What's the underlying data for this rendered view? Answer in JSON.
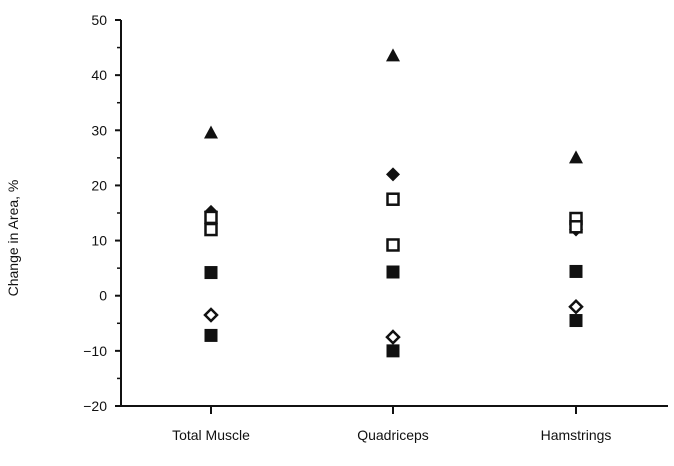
{
  "chart_data": {
    "type": "scatter",
    "ylabel": "Change in Area, %",
    "xlabel": "",
    "ylim": [
      -20,
      50
    ],
    "yticks": [
      -20,
      -10,
      0,
      10,
      20,
      30,
      40,
      50
    ],
    "ytick_labels": [
      "−20",
      "−10",
      "0",
      "10",
      "20",
      "30",
      "40",
      "50"
    ],
    "categories": [
      "Total Muscle",
      "Quadriceps",
      "Hamstrings"
    ],
    "grid": false,
    "series": [
      {
        "marker": "filled-triangle",
        "values": [
          29.5,
          43.5,
          25.0
        ]
      },
      {
        "marker": "filled-diamond",
        "values": [
          15.2,
          22.0,
          12.0
        ]
      },
      {
        "marker": "open-square",
        "values": [
          12.0,
          17.5,
          14.0
        ]
      },
      {
        "marker": "open-square",
        "values": [
          14.2,
          9.2,
          12.5
        ]
      },
      {
        "marker": "filled-square",
        "values": [
          4.2,
          4.3,
          4.4
        ]
      },
      {
        "marker": "open-diamond",
        "values": [
          -3.5,
          -7.5,
          -2.0
        ]
      },
      {
        "marker": "filled-square",
        "values": [
          -7.2,
          -10.0,
          -4.5
        ]
      }
    ],
    "colors": {
      "ink": "#111111",
      "background": "#ffffff"
    }
  }
}
